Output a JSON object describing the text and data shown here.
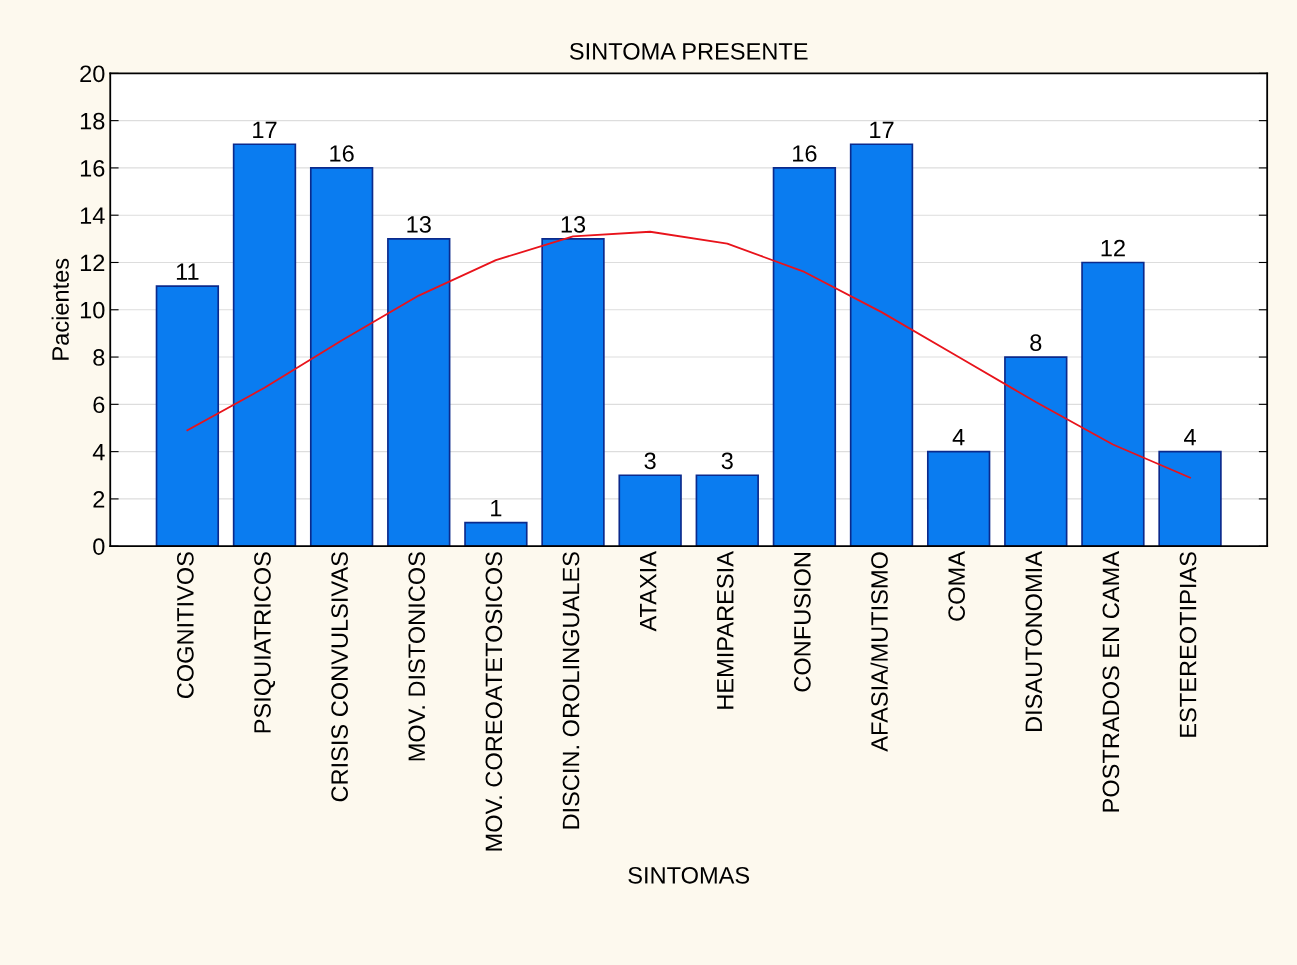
{
  "chart_data": {
    "type": "bar",
    "title": "SINTOMA PRESENTE",
    "xlabel": "SINTOMAS",
    "ylabel": "Pacientes",
    "categories": [
      "COGNITIVOS",
      "PSIQUIATRICOS",
      "CRISIS CONVULSIVAS",
      "MOV. DISTONICOS",
      "MOV. COREOATETOSICOS",
      "DISCIN. OROLINGUALES",
      "ATAXIA",
      "HEMIPARESIA",
      "CONFUSION",
      "AFASIA/MUTISMO",
      "COMA",
      "DISAUTONOMIA",
      "POSTRADOS EN CAMA",
      "ESTEREOTIPIAS"
    ],
    "series": [
      {
        "color": "#0a7cf0",
        "values": [
          11,
          17,
          16,
          13,
          1,
          13,
          3,
          3,
          16,
          17,
          4,
          8,
          12,
          4
        ],
        "value_labels": [
          "11",
          "17",
          "16",
          "13",
          "1",
          "13",
          "3",
          "3",
          "16",
          "17",
          "4",
          "8",
          "12",
          "4"
        ]
      },
      {
        "type": "line",
        "color": "#e8131b",
        "values": [
          4.9,
          6.7,
          8.7,
          10.6,
          12.1,
          13.1,
          13.3,
          12.8,
          11.6,
          9.9,
          8.0,
          6.1,
          4.3,
          2.9
        ]
      }
    ],
    "ylim": [
      0,
      20
    ],
    "yticks": [
      0,
      2,
      4,
      6,
      8,
      10,
      12,
      14,
      16,
      18,
      20
    ],
    "grid": "y"
  }
}
